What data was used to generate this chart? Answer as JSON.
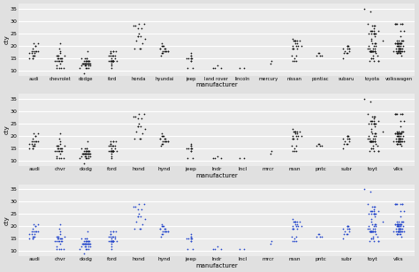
{
  "manufacturers_full": [
    "audi",
    "chevrolet",
    "dodge",
    "ford",
    "honda",
    "hyundai",
    "jeep",
    "land rover",
    "lincoln",
    "mercury",
    "nissan",
    "pontiac",
    "subaru",
    "toyota",
    "volkswagen"
  ],
  "manufacturers_short": [
    "audi",
    "chvr",
    "dodg",
    "ford",
    "hond",
    "hynd",
    "jeep",
    "lndr",
    "lncl",
    "mrcr",
    "nssn",
    "pntc",
    "subr",
    "toyt",
    "vlks"
  ],
  "cty_by_manufacturer": {
    "audi": [
      18,
      21,
      20,
      21,
      16,
      18,
      18,
      18,
      16,
      20,
      19,
      15,
      17,
      17,
      15,
      15,
      17,
      16,
      18
    ],
    "chevrolet": [
      14,
      11,
      14,
      13,
      12,
      16,
      17,
      15,
      15,
      14,
      11,
      15,
      16,
      15,
      16,
      15,
      11,
      11,
      14,
      16,
      14,
      14,
      18,
      21,
      19
    ],
    "dodge": [
      13,
      9,
      12,
      13,
      15,
      15,
      15,
      15,
      13,
      13,
      13,
      14,
      14,
      14,
      14,
      13,
      13,
      13,
      13,
      13,
      12,
      14,
      14,
      14,
      18,
      13,
      14,
      12,
      13,
      13,
      11,
      11,
      13,
      11,
      11,
      12,
      12
    ],
    "ford": [
      18,
      18,
      18,
      17,
      16,
      15,
      18,
      17,
      14,
      16,
      16,
      14,
      13,
      14,
      16,
      16,
      14,
      14,
      11,
      14,
      15,
      12,
      14,
      14,
      14,
      14,
      14,
      14,
      14
    ],
    "honda": [
      28,
      24,
      25,
      23,
      24,
      29,
      27,
      28,
      27,
      24,
      19,
      22,
      21,
      19,
      19,
      29
    ],
    "hyundai": [
      20,
      18,
      19,
      17,
      19,
      18,
      21,
      19,
      17,
      18,
      20,
      20,
      18,
      16,
      18,
      18,
      19
    ],
    "jeep": [
      15,
      14,
      11,
      11,
      15,
      15,
      15,
      16,
      14,
      15,
      17,
      16
    ],
    "land rover": [
      11,
      11,
      12,
      11
    ],
    "lincoln": [
      11,
      11
    ],
    "mercury": [
      13,
      14
    ],
    "nissan": [
      20,
      22,
      22,
      21,
      22,
      22,
      19,
      19,
      23,
      22,
      21,
      22,
      19,
      15,
      20,
      19,
      20,
      20,
      14,
      16,
      14,
      14,
      16
    ],
    "pontiac": [
      16,
      16,
      17,
      16,
      17
    ],
    "subaru": [
      19,
      19,
      19,
      20,
      17,
      18,
      20,
      17,
      17,
      20,
      20,
      18,
      19,
      15
    ],
    "toyota": [
      18,
      25,
      25,
      25,
      22,
      27,
      25,
      19,
      21,
      21,
      21,
      18,
      18,
      15,
      15,
      14,
      29,
      25,
      25,
      23,
      20,
      18,
      18,
      18,
      18,
      18,
      18,
      16,
      18,
      26,
      28,
      19,
      19,
      22,
      24,
      26,
      26,
      20,
      28,
      19,
      18,
      18,
      15,
      16,
      14,
      14,
      18,
      14,
      17,
      20,
      25,
      21,
      26,
      26,
      18,
      18,
      28,
      35,
      34
    ],
    "volkswagen": [
      21,
      21,
      22,
      21,
      21,
      21,
      29,
      29,
      18,
      19,
      19,
      18,
      18,
      20,
      20,
      20,
      20,
      20,
      20,
      29,
      26,
      18,
      18,
      17,
      17,
      17,
      18,
      18,
      21,
      22,
      21,
      21,
      16,
      19,
      21,
      21,
      22,
      21,
      21,
      21,
      21,
      22,
      22,
      29,
      29,
      17,
      21,
      21,
      18,
      19,
      19,
      19,
      19,
      18,
      18,
      19,
      19,
      18,
      17,
      18,
      18,
      29,
      29,
      24,
      26,
      19,
      18
    ]
  },
  "panel_bg": "#ebebeb",
  "plot_bg": "#e0e0e0",
  "grid_color": "#ffffff",
  "dot_color_black": "#111111",
  "dot_color_blue": "#2244cc",
  "ylim": [
    8,
    37
  ],
  "yticks": [
    10,
    15,
    20,
    25,
    30,
    35
  ],
  "ylabel": "cty",
  "xlabel": "manufacturer",
  "dot_size": 1.5,
  "jitter_seed": 42
}
